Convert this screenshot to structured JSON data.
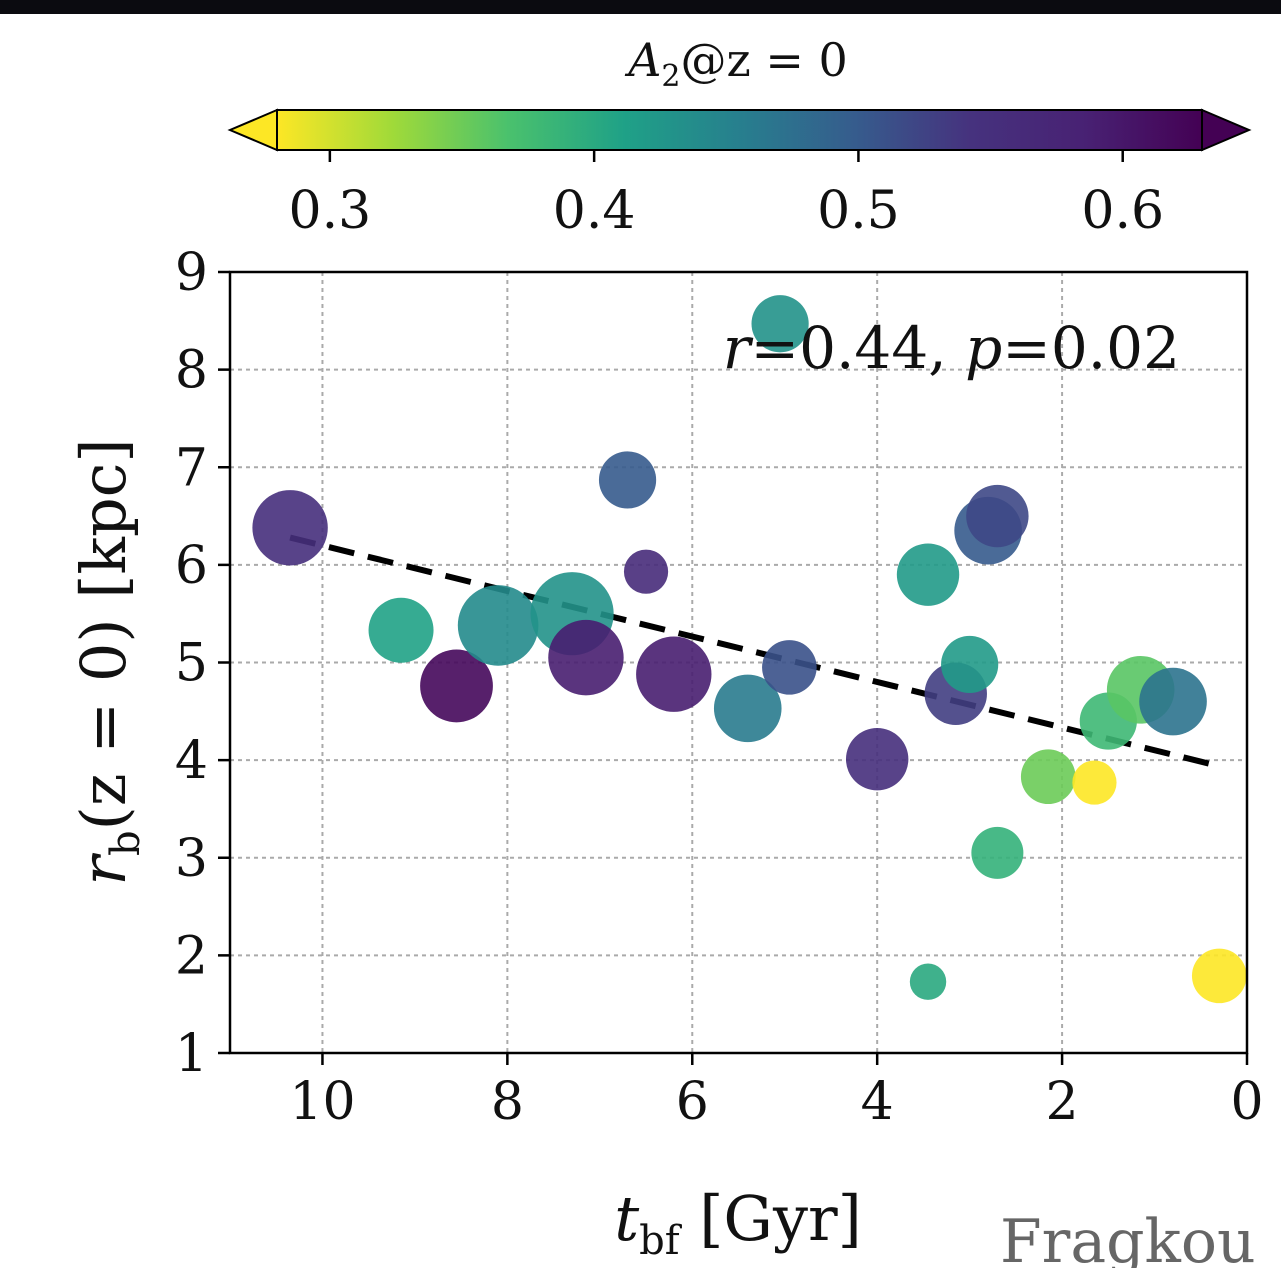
{
  "chart_data": {
    "type": "scatter",
    "xlabel": "t_bf [Gyr]",
    "xlabel_parts": {
      "main": "t",
      "sub": "bf",
      "rest": " [Gyr]"
    },
    "ylabel": "r_b(z = 0) [kpc]",
    "ylabel_parts": {
      "main": "r",
      "sub": "b",
      "rest": "(z = 0) [kpc]"
    },
    "xlim": [
      11,
      0
    ],
    "ylim": [
      1,
      9
    ],
    "x_inverted": true,
    "xticks": [
      10,
      8,
      6,
      4,
      2,
      0
    ],
    "xtick_labels": [
      "10",
      "8",
      "6",
      "4",
      "2",
      "0"
    ],
    "yticks": [
      1,
      2,
      3,
      4,
      5,
      6,
      7,
      8,
      9
    ],
    "ytick_labels": [
      "1",
      "2",
      "3",
      "4",
      "5",
      "6",
      "7",
      "8",
      "9"
    ],
    "grid": true,
    "annotation": "r=0.44, p=0.02",
    "annotation_parts": {
      "r_sym": "r",
      "r_val": "=0.44, ",
      "p_sym": "p",
      "p_val": "=0.02"
    },
    "colorbar": {
      "label": "A2@z = 0",
      "label_parts": {
        "main": "A",
        "sub": "2",
        "rest": "@z = 0"
      },
      "colormap": "viridis",
      "range": [
        0.28,
        0.63
      ],
      "ticks": [
        0.3,
        0.4,
        0.5,
        0.6
      ],
      "tick_labels": [
        "0.3",
        "0.4",
        "0.5",
        "0.6"
      ],
      "extend": "both",
      "location": "top"
    },
    "fit_line": {
      "style": "dashed",
      "color": "#000000",
      "x": [
        10.35,
        0.35
      ],
      "y": [
        6.28,
        3.95
      ]
    },
    "points": [
      {
        "x": 10.35,
        "y": 6.38,
        "c": 0.55,
        "s": 1.45
      },
      {
        "x": 9.15,
        "y": 5.33,
        "c": 0.41,
        "s": 1.25
      },
      {
        "x": 8.55,
        "y": 4.76,
        "c": 0.62,
        "s": 1.4
      },
      {
        "x": 8.1,
        "y": 5.38,
        "c": 0.44,
        "s": 1.55
      },
      {
        "x": 7.3,
        "y": 5.5,
        "c": 0.43,
        "s": 1.6
      },
      {
        "x": 7.15,
        "y": 5.05,
        "c": 0.59,
        "s": 1.45
      },
      {
        "x": 6.7,
        "y": 6.87,
        "c": 0.5,
        "s": 1.1
      },
      {
        "x": 6.5,
        "y": 5.93,
        "c": 0.56,
        "s": 0.85
      },
      {
        "x": 6.2,
        "y": 4.88,
        "c": 0.59,
        "s": 1.45
      },
      {
        "x": 5.4,
        "y": 4.53,
        "c": 0.46,
        "s": 1.3
      },
      {
        "x": 5.05,
        "y": 8.47,
        "c": 0.43,
        "s": 1.1
      },
      {
        "x": 4.95,
        "y": 4.95,
        "c": 0.51,
        "s": 1.05
      },
      {
        "x": 4.0,
        "y": 4.01,
        "c": 0.55,
        "s": 1.2
      },
      {
        "x": 3.45,
        "y": 5.9,
        "c": 0.42,
        "s": 1.2
      },
      {
        "x": 3.45,
        "y": 1.73,
        "c": 0.4,
        "s": 0.7
      },
      {
        "x": 3.15,
        "y": 4.68,
        "c": 0.53,
        "s": 1.2
      },
      {
        "x": 3.0,
        "y": 4.98,
        "c": 0.42,
        "s": 1.1
      },
      {
        "x": 2.8,
        "y": 6.35,
        "c": 0.5,
        "s": 1.3
      },
      {
        "x": 2.7,
        "y": 6.5,
        "c": 0.52,
        "s": 1.2
      },
      {
        "x": 2.7,
        "y": 3.05,
        "c": 0.39,
        "s": 1.0
      },
      {
        "x": 2.15,
        "y": 3.83,
        "c": 0.35,
        "s": 1.05
      },
      {
        "x": 1.65,
        "y": 3.77,
        "c": 0.28,
        "s": 0.85
      },
      {
        "x": 1.5,
        "y": 4.4,
        "c": 0.38,
        "s": 1.1
      },
      {
        "x": 1.15,
        "y": 4.72,
        "c": 0.36,
        "s": 1.3
      },
      {
        "x": 0.8,
        "y": 4.6,
        "c": 0.47,
        "s": 1.3
      },
      {
        "x": 0.3,
        "y": 1.79,
        "c": 0.28,
        "s": 1.05
      }
    ]
  },
  "watermark": "Fragkou"
}
